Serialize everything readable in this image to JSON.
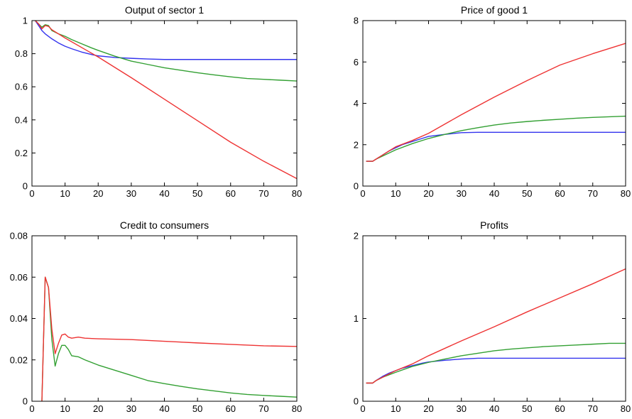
{
  "colors": {
    "blue": "#3333ee",
    "green": "#33a033",
    "red": "#ee3333",
    "axis": "#000000",
    "background": "#ffffff"
  },
  "chart_data": [
    {
      "type": "line",
      "title": "Output of sector 1",
      "xlabel": "",
      "ylabel": "",
      "xlim": [
        0,
        80
      ],
      "ylim": [
        0,
        1
      ],
      "xticks": [
        0,
        10,
        20,
        30,
        40,
        50,
        60,
        70,
        80
      ],
      "yticks": [
        0,
        0.2,
        0.4,
        0.6,
        0.8,
        1
      ],
      "grid": false,
      "legend": "none",
      "series": [
        {
          "color": "blue",
          "x": [
            1,
            2,
            3,
            4,
            6,
            8,
            10,
            12,
            15,
            18,
            20,
            25,
            30,
            35,
            40,
            50,
            60,
            70,
            80
          ],
          "y": [
            1,
            0.97,
            0.94,
            0.92,
            0.89,
            0.865,
            0.845,
            0.83,
            0.81,
            0.795,
            0.787,
            0.777,
            0.772,
            0.768,
            0.765,
            0.765,
            0.765,
            0.765,
            0.765
          ]
        },
        {
          "color": "green",
          "x": [
            1,
            2,
            3,
            4,
            5,
            6,
            8,
            10,
            12,
            15,
            18,
            20,
            25,
            30,
            35,
            40,
            45,
            50,
            55,
            60,
            65,
            70,
            75,
            80
          ],
          "y": [
            1,
            0.98,
            0.96,
            0.975,
            0.97,
            0.94,
            0.92,
            0.905,
            0.885,
            0.86,
            0.835,
            0.82,
            0.785,
            0.755,
            0.735,
            0.715,
            0.7,
            0.685,
            0.672,
            0.66,
            0.65,
            0.645,
            0.64,
            0.635
          ]
        },
        {
          "color": "red",
          "x": [
            1,
            2,
            3,
            4,
            5,
            6,
            10,
            20,
            30,
            40,
            50,
            60,
            70,
            80
          ],
          "y": [
            1,
            0.98,
            0.95,
            0.97,
            0.965,
            0.945,
            0.895,
            0.78,
            0.655,
            0.525,
            0.395,
            0.265,
            0.15,
            0.045
          ]
        }
      ]
    },
    {
      "type": "line",
      "title": "Price of good 1",
      "xlabel": "",
      "ylabel": "",
      "xlim": [
        0,
        80
      ],
      "ylim": [
        0,
        8
      ],
      "xticks": [
        0,
        10,
        20,
        30,
        40,
        50,
        60,
        70,
        80
      ],
      "yticks": [
        0,
        2,
        4,
        6,
        8
      ],
      "grid": false,
      "legend": "none",
      "series": [
        {
          "color": "blue",
          "x": [
            1,
            2,
            3,
            4,
            6,
            8,
            10,
            12,
            15,
            18,
            20,
            25,
            30,
            35,
            40,
            50,
            60,
            70,
            80
          ],
          "y": [
            1.2,
            1.2,
            1.2,
            1.3,
            1.5,
            1.7,
            1.85,
            2.0,
            2.15,
            2.3,
            2.4,
            2.5,
            2.58,
            2.6,
            2.6,
            2.6,
            2.6,
            2.6,
            2.6
          ]
        },
        {
          "color": "green",
          "x": [
            1,
            2,
            3,
            4,
            6,
            8,
            10,
            15,
            20,
            25,
            30,
            35,
            40,
            45,
            50,
            55,
            60,
            65,
            70,
            75,
            80
          ],
          "y": [
            1.2,
            1.2,
            1.2,
            1.3,
            1.45,
            1.6,
            1.75,
            2.05,
            2.3,
            2.5,
            2.68,
            2.82,
            2.95,
            3.05,
            3.12,
            3.18,
            3.23,
            3.28,
            3.32,
            3.35,
            3.38
          ]
        },
        {
          "color": "red",
          "x": [
            1,
            2,
            3,
            4,
            6,
            8,
            10,
            15,
            20,
            30,
            40,
            50,
            60,
            70,
            80
          ],
          "y": [
            1.2,
            1.2,
            1.2,
            1.3,
            1.5,
            1.7,
            1.9,
            2.2,
            2.55,
            3.45,
            4.3,
            5.1,
            5.85,
            6.4,
            6.9
          ]
        }
      ]
    },
    {
      "type": "line",
      "title": "Credit to consumers",
      "xlabel": "",
      "ylabel": "",
      "xlim": [
        0,
        80
      ],
      "ylim": [
        0,
        0.08
      ],
      "xticks": [
        0,
        10,
        20,
        30,
        40,
        50,
        60,
        70,
        80
      ],
      "yticks": [
        0,
        0.02,
        0.04,
        0.06,
        0.08
      ],
      "grid": false,
      "legend": "none",
      "series": [
        {
          "color": "green",
          "x": [
            3,
            4,
            5,
            6,
            7,
            8,
            9,
            10,
            11,
            12,
            14,
            16,
            20,
            25,
            30,
            35,
            40,
            45,
            50,
            55,
            60,
            65,
            70,
            75,
            80
          ],
          "y": [
            0,
            0.06,
            0.055,
            0.03,
            0.017,
            0.023,
            0.027,
            0.027,
            0.025,
            0.022,
            0.0215,
            0.02,
            0.0175,
            0.015,
            0.0125,
            0.01,
            0.0085,
            0.0072,
            0.006,
            0.005,
            0.004,
            0.0033,
            0.0028,
            0.0024,
            0.002
          ]
        },
        {
          "color": "red",
          "x": [
            3,
            4,
            5,
            6,
            7,
            8,
            9,
            10,
            11,
            12,
            14,
            16,
            20,
            30,
            40,
            50,
            60,
            70,
            80
          ],
          "y": [
            0,
            0.06,
            0.055,
            0.035,
            0.023,
            0.028,
            0.032,
            0.0325,
            0.031,
            0.0305,
            0.031,
            0.0305,
            0.0302,
            0.0298,
            0.029,
            0.0282,
            0.0275,
            0.0268,
            0.0265
          ]
        }
      ]
    },
    {
      "type": "line",
      "title": "Profits",
      "xlabel": "",
      "ylabel": "",
      "xlim": [
        0,
        80
      ],
      "ylim": [
        0,
        2
      ],
      "xticks": [
        0,
        10,
        20,
        30,
        40,
        50,
        60,
        70,
        80
      ],
      "yticks": [
        0,
        1,
        2
      ],
      "grid": false,
      "legend": "none",
      "series": [
        {
          "color": "blue",
          "x": [
            1,
            2,
            3,
            4,
            6,
            8,
            10,
            12,
            15,
            18,
            20,
            25,
            30,
            35,
            40,
            50,
            60,
            70,
            80
          ],
          "y": [
            0.22,
            0.22,
            0.22,
            0.25,
            0.3,
            0.34,
            0.37,
            0.4,
            0.43,
            0.46,
            0.475,
            0.495,
            0.51,
            0.52,
            0.52,
            0.52,
            0.52,
            0.52,
            0.52
          ]
        },
        {
          "color": "green",
          "x": [
            1,
            2,
            3,
            4,
            6,
            8,
            10,
            15,
            20,
            25,
            30,
            35,
            40,
            45,
            50,
            55,
            60,
            65,
            70,
            75,
            80
          ],
          "y": [
            0.22,
            0.22,
            0.22,
            0.25,
            0.29,
            0.32,
            0.35,
            0.42,
            0.47,
            0.51,
            0.55,
            0.58,
            0.61,
            0.63,
            0.645,
            0.66,
            0.67,
            0.68,
            0.69,
            0.7,
            0.7
          ]
        },
        {
          "color": "red",
          "x": [
            1,
            2,
            3,
            4,
            6,
            8,
            10,
            15,
            20,
            30,
            40,
            50,
            60,
            70,
            80
          ],
          "y": [
            0.22,
            0.22,
            0.22,
            0.25,
            0.29,
            0.33,
            0.37,
            0.45,
            0.55,
            0.73,
            0.9,
            1.08,
            1.25,
            1.42,
            1.6
          ]
        }
      ]
    }
  ]
}
